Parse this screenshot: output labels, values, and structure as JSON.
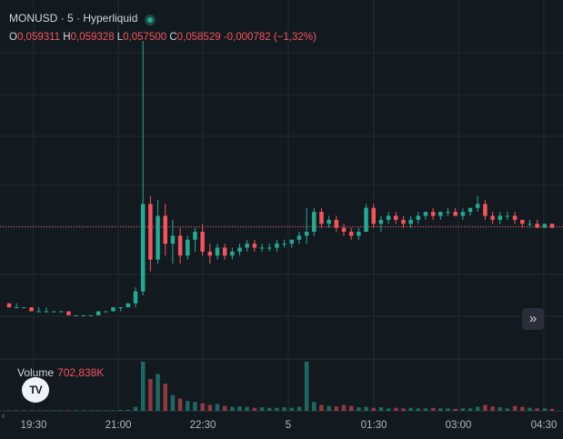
{
  "header": {
    "symbol": "MONUSD · 5 · Hyperliquid",
    "open_label": "O",
    "open": "0,059311",
    "high_label": "H",
    "high": "0,059328",
    "low_label": "L",
    "low": "0,057500",
    "close_label": "C",
    "close": "0,058529",
    "change": "-0,000782 (−1,32%)"
  },
  "volume": {
    "label": "Volume",
    "value": "702,838K"
  },
  "logo": "TV",
  "scroll_button": "»",
  "x_axis": [
    "19:30",
    "21:00",
    "22:30",
    "5",
    "01:30",
    "03:00",
    "04:30"
  ],
  "colors": {
    "up": "#22ab94",
    "down": "#f7525f",
    "background": "#131a1f",
    "grid": "#1f2a30"
  },
  "chart_data": {
    "type": "candlestick",
    "symbol": "MONUSD",
    "interval": "5",
    "exchange": "Hyperliquid",
    "y_range": [
      0.0552,
      0.0632
    ],
    "current_price_line": 0.05853,
    "x_ticks": [
      "19:30",
      "21:00",
      "22:30",
      "5",
      "01:30",
      "03:00",
      "04:30"
    ],
    "candles": [
      [
        0.0566,
        0.0566,
        0.0565,
        0.0565
      ],
      [
        0.0565,
        0.0566,
        0.0565,
        0.0565
      ],
      [
        0.0565,
        0.0565,
        0.0565,
        0.0565
      ],
      [
        0.0565,
        0.0565,
        0.0564,
        0.0564
      ],
      [
        0.0564,
        0.0565,
        0.0564,
        0.0564
      ],
      [
        0.0564,
        0.0565,
        0.0564,
        0.0564
      ],
      [
        0.0564,
        0.0564,
        0.0564,
        0.0564
      ],
      [
        0.0564,
        0.0564,
        0.0564,
        0.0564
      ],
      [
        0.0564,
        0.0564,
        0.0563,
        0.0563
      ],
      [
        0.0563,
        0.0563,
        0.0563,
        0.0563
      ],
      [
        0.0563,
        0.0563,
        0.0563,
        0.0563
      ],
      [
        0.0563,
        0.0563,
        0.0563,
        0.0563
      ],
      [
        0.0563,
        0.0564,
        0.0563,
        0.0564
      ],
      [
        0.0564,
        0.0564,
        0.0564,
        0.0564
      ],
      [
        0.0564,
        0.0565,
        0.0564,
        0.0565
      ],
      [
        0.0565,
        0.0565,
        0.0564,
        0.0565
      ],
      [
        0.0565,
        0.0566,
        0.0565,
        0.0566
      ],
      [
        0.0566,
        0.057,
        0.0565,
        0.0569
      ],
      [
        0.0569,
        0.0632,
        0.0568,
        0.0591
      ],
      [
        0.0591,
        0.0593,
        0.0574,
        0.0577
      ],
      [
        0.0577,
        0.0592,
        0.0576,
        0.0588
      ],
      [
        0.0588,
        0.0591,
        0.0578,
        0.0581
      ],
      [
        0.0581,
        0.0587,
        0.0576,
        0.0583
      ],
      [
        0.0583,
        0.0585,
        0.0576,
        0.0578
      ],
      [
        0.0578,
        0.0583,
        0.0577,
        0.0582
      ],
      [
        0.0582,
        0.0585,
        0.0579,
        0.0584
      ],
      [
        0.0584,
        0.0586,
        0.0578,
        0.0579
      ],
      [
        0.0579,
        0.0581,
        0.0576,
        0.0578
      ],
      [
        0.0578,
        0.0581,
        0.0577,
        0.058
      ],
      [
        0.058,
        0.0581,
        0.0577,
        0.0578
      ],
      [
        0.0578,
        0.058,
        0.0577,
        0.0579
      ],
      [
        0.0579,
        0.0581,
        0.0578,
        0.058
      ],
      [
        0.058,
        0.0582,
        0.0579,
        0.0581
      ],
      [
        0.0581,
        0.0582,
        0.0579,
        0.058
      ],
      [
        0.058,
        0.0581,
        0.0579,
        0.058
      ],
      [
        0.058,
        0.0581,
        0.0579,
        0.058
      ],
      [
        0.058,
        0.0582,
        0.0579,
        0.0581
      ],
      [
        0.0581,
        0.0582,
        0.058,
        0.0581
      ],
      [
        0.0581,
        0.0582,
        0.058,
        0.0582
      ],
      [
        0.0582,
        0.0584,
        0.0581,
        0.0583
      ],
      [
        0.0583,
        0.059,
        0.0581,
        0.0584
      ],
      [
        0.0584,
        0.059,
        0.0583,
        0.0589
      ],
      [
        0.0589,
        0.059,
        0.0585,
        0.0586
      ],
      [
        0.0586,
        0.0588,
        0.0585,
        0.0587
      ],
      [
        0.0587,
        0.0588,
        0.0584,
        0.0585
      ],
      [
        0.0585,
        0.0586,
        0.0583,
        0.0584
      ],
      [
        0.0584,
        0.0585,
        0.0582,
        0.0583
      ],
      [
        0.0583,
        0.0585,
        0.0582,
        0.0584
      ],
      [
        0.0584,
        0.0591,
        0.0584,
        0.059
      ],
      [
        0.059,
        0.0591,
        0.0585,
        0.0586
      ],
      [
        0.0586,
        0.0588,
        0.0584,
        0.0587
      ],
      [
        0.0587,
        0.0589,
        0.0586,
        0.0588
      ],
      [
        0.0588,
        0.0589,
        0.0586,
        0.0587
      ],
      [
        0.0587,
        0.0588,
        0.0585,
        0.0586
      ],
      [
        0.0586,
        0.0588,
        0.0585,
        0.0587
      ],
      [
        0.0587,
        0.0589,
        0.0586,
        0.0588
      ],
      [
        0.0588,
        0.0589,
        0.0587,
        0.0589
      ],
      [
        0.0589,
        0.059,
        0.0587,
        0.0588
      ],
      [
        0.0588,
        0.0589,
        0.0587,
        0.0589
      ],
      [
        0.0589,
        0.059,
        0.0588,
        0.0589
      ],
      [
        0.0589,
        0.059,
        0.0588,
        0.0588
      ],
      [
        0.0588,
        0.059,
        0.0587,
        0.0589
      ],
      [
        0.0589,
        0.059,
        0.0588,
        0.059
      ],
      [
        0.059,
        0.0593,
        0.0589,
        0.0591
      ],
      [
        0.0591,
        0.0592,
        0.0587,
        0.0588
      ],
      [
        0.0588,
        0.0589,
        0.0586,
        0.0587
      ],
      [
        0.0587,
        0.0589,
        0.0586,
        0.0588
      ],
      [
        0.0588,
        0.0589,
        0.0587,
        0.0588
      ],
      [
        0.0588,
        0.0589,
        0.0586,
        0.0587
      ],
      [
        0.0587,
        0.0587,
        0.0585,
        0.0586
      ],
      [
        0.0586,
        0.0587,
        0.0585,
        0.0586
      ],
      [
        0.0586,
        0.0587,
        0.0585,
        0.0585
      ],
      [
        0.0585,
        0.0586,
        0.0585,
        0.0586
      ],
      [
        0.0586,
        0.0586,
        0.0585,
        0.0585
      ]
    ],
    "volume": [
      0.01,
      0.01,
      0.01,
      0.01,
      0.01,
      0.01,
      0.01,
      0.01,
      0.01,
      0.01,
      0.01,
      0.01,
      0.01,
      0.01,
      0.01,
      0.02,
      0.02,
      0.08,
      1.0,
      0.65,
      0.75,
      0.55,
      0.32,
      0.25,
      0.2,
      0.18,
      0.15,
      0.12,
      0.14,
      0.1,
      0.08,
      0.09,
      0.08,
      0.06,
      0.07,
      0.06,
      0.06,
      0.07,
      0.06,
      0.08,
      1.0,
      0.18,
      0.12,
      0.1,
      0.09,
      0.12,
      0.1,
      0.07,
      0.08,
      0.06,
      0.07,
      0.05,
      0.06,
      0.05,
      0.06,
      0.05,
      0.05,
      0.06,
      0.05,
      0.05,
      0.04,
      0.05,
      0.05,
      0.08,
      0.12,
      0.09,
      0.07,
      0.05,
      0.1,
      0.08,
      0.06,
      0.05,
      0.05,
      0.04
    ]
  }
}
